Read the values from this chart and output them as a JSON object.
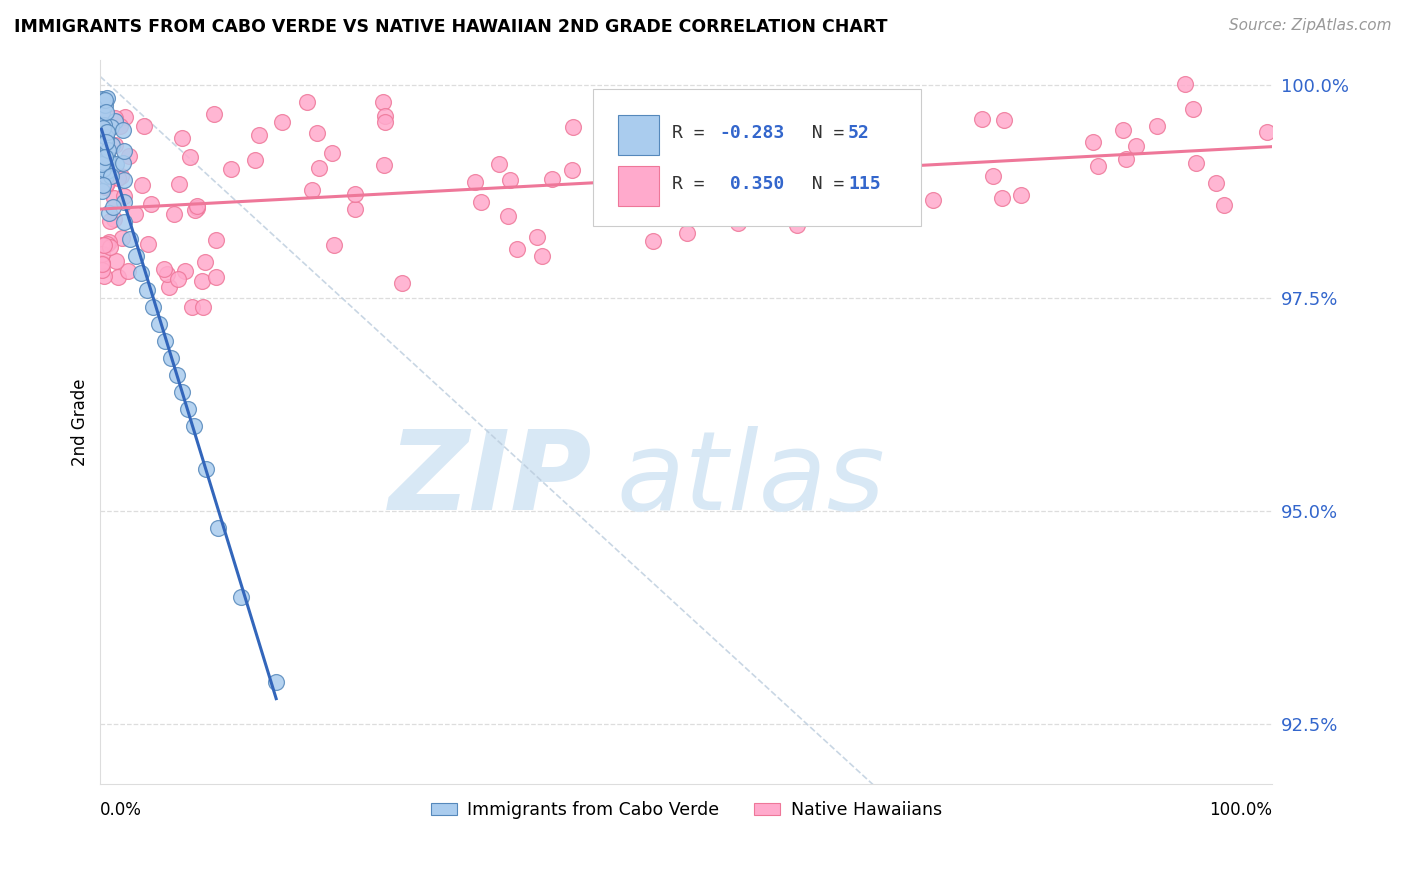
{
  "title": "IMMIGRANTS FROM CABO VERDE VS NATIVE HAWAIIAN 2ND GRADE CORRELATION CHART",
  "source": "Source: ZipAtlas.com",
  "ylabel": "2nd Grade",
  "legend_label_blue": "Immigrants from Cabo Verde",
  "legend_label_pink": "Native Hawaiians",
  "blue_color": "#AACCEE",
  "pink_color": "#FFAACC",
  "blue_edge_color": "#5588BB",
  "pink_edge_color": "#EE7799",
  "blue_line_color": "#3366BB",
  "pink_line_color": "#EE7799",
  "diag_color": "#BBCCDD",
  "right_tick_color": "#3366CC",
  "watermark_color": "#D8E8F5",
  "ylim_min": 0.918,
  "ylim_max": 1.003,
  "xlim_min": 0.0,
  "xlim_max": 1.0,
  "yticks": [
    0.925,
    0.95,
    0.975,
    1.0
  ],
  "ytick_labels": [
    "92.5%",
    "95.0%",
    "97.5%",
    "100.0%"
  ]
}
